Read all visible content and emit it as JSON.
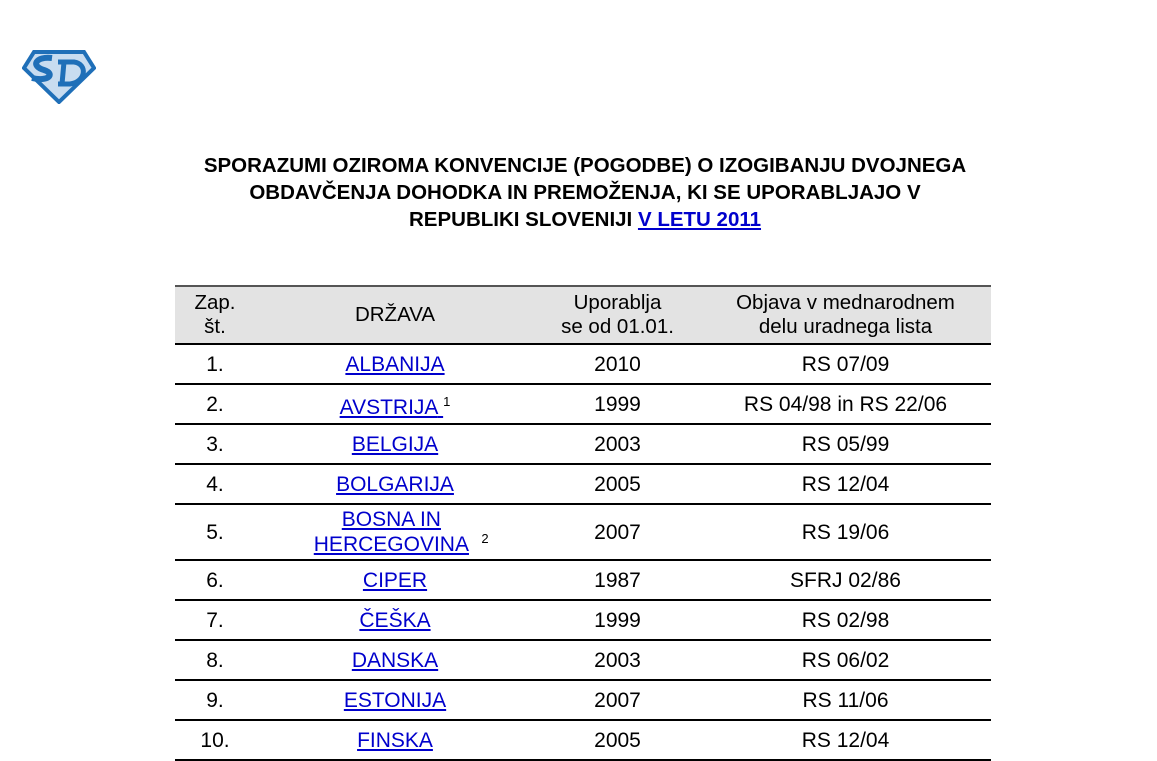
{
  "logo": {
    "text": "SD",
    "colors": {
      "primary": "#1f6fb8",
      "light": "#c8dcf0"
    }
  },
  "title": {
    "line1": "SPORAZUMI OZIROMA KONVENCIJE (POGODBE) O IZOGIBANJU DVOJNEGA",
    "line2": "OBDAVČENJA DOHODKA IN PREMOŽENJA, KI SE UPORABLJAJO V",
    "line3": "REPUBLIKI SLOVENIJI",
    "link": "V LETU 2011"
  },
  "table": {
    "headers": {
      "num_l1": "Zap.",
      "num_l2": "št.",
      "country": "DRŽAVA",
      "since_l1": "Uporablja",
      "since_l2": "se od 01.01.",
      "pub_l1": "Objava v mednarodnem",
      "pub_l2": "delu uradnega lista"
    },
    "rows": [
      {
        "num": "1.",
        "country": "ALBANIJA",
        "note": "",
        "year": "2010",
        "pub": "RS 07/09"
      },
      {
        "num": "2.",
        "country": "AVSTRIJA",
        "note": "1",
        "year": "1999",
        "pub": "RS 04/98 in RS 22/06"
      },
      {
        "num": "3.",
        "country": "BELGIJA",
        "note": "",
        "year": "2003",
        "pub": "RS 05/99"
      },
      {
        "num": "4.",
        "country": "BOLGARIJA",
        "note": "",
        "year": "2005",
        "pub": "RS 12/04"
      },
      {
        "num": "5.",
        "country": "BOSNA IN HERCEGOVINA",
        "note": "2",
        "year": "2007",
        "pub": "RS 19/06"
      },
      {
        "num": "6.",
        "country": "CIPER",
        "note": "",
        "year": "1987",
        "pub": "SFRJ 02/86"
      },
      {
        "num": "7.",
        "country": "ČEŠKA",
        "note": "",
        "year": "1999",
        "pub": "RS 02/98"
      },
      {
        "num": "8.",
        "country": "DANSKA",
        "note": "",
        "year": "2003",
        "pub": "RS 06/02"
      },
      {
        "num": "9.",
        "country": "ESTONIJA",
        "note": "",
        "year": "2007",
        "pub": "RS 11/06"
      },
      {
        "num": "10.",
        "country": "FINSKA",
        "note": "",
        "year": "2005",
        "pub": "RS 12/04"
      }
    ]
  }
}
